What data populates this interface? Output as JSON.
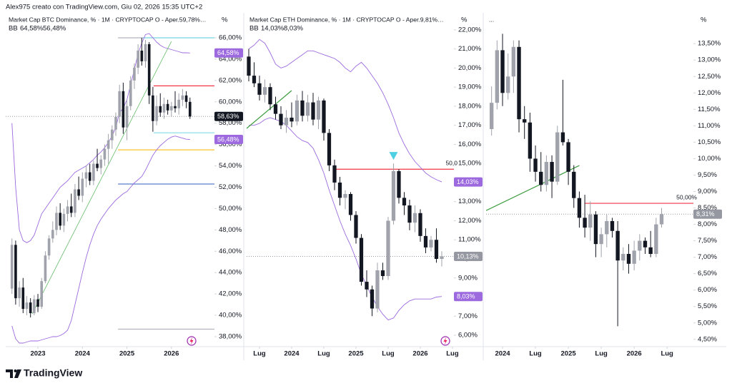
{
  "header": "Alex975 creato con TradingView.com, Giu 02, 2026 15:35 UTC+2",
  "footer": "TradingView",
  "chart_data": [
    {
      "type": "candlestick",
      "title": "Market Cap BTC Dominance, % · 1M · CRYPTOCAP  O - Aper.59,78%…",
      "unit": "%",
      "up_color": "#a0a3ab",
      "down_color": "#131722",
      "indicator": {
        "name": "BB",
        "upper_label": "64,58%",
        "lower_label": "56,48%",
        "color": "#9c6ade",
        "upper": [
          58,
          52,
          48,
          47,
          46.8,
          47,
          47.5,
          48.5,
          49.5,
          50,
          50.5,
          51,
          51.5,
          52,
          52.3,
          52.6,
          53,
          53.4,
          53.6,
          53.8,
          54,
          54.3,
          54.6,
          55,
          55.3,
          55.7,
          56.2,
          56.8,
          57.6,
          59,
          59.4,
          60.2,
          61.6,
          63,
          64.5,
          65.5,
          66.3,
          66.4,
          66,
          65.6,
          65.3,
          65.1,
          65,
          64.9,
          64.8,
          64.7,
          64.6,
          64.6,
          64.58
        ],
        "lower": [
          39,
          37.8,
          37.4,
          37.4,
          37.5,
          37.6,
          37.6,
          37.6,
          37.7,
          37.8,
          37.9,
          38,
          38,
          38.1,
          38.3,
          38.6,
          39.5,
          41,
          42.5,
          44,
          45.4,
          46.6,
          47.6,
          48.4,
          49,
          49.5,
          50,
          50.4,
          50.8,
          51.1,
          51.4,
          51.6,
          52,
          52.4,
          52.7,
          53,
          53.6,
          54.3,
          55,
          55.5,
          55.9,
          56.2,
          56.5,
          56.7,
          56.8,
          56.7,
          56.6,
          56.5,
          56.48
        ]
      },
      "open": [
        42.5,
        46.6,
        41.6,
        42.6,
        40.6,
        41.2,
        40.2,
        41.5,
        40.8,
        43.2,
        45.6,
        47.2,
        48.0,
        49.6,
        48.4,
        49.5,
        50.2,
        49.6,
        51.8,
        51.2,
        52.8,
        53.4,
        52.6,
        54.2,
        53.8,
        54.6,
        55.6,
        56.4,
        57.4,
        58.6,
        61.0,
        57.6,
        59.6,
        62.0,
        63.2,
        64.8,
        63.8,
        65.4,
        60.6,
        58.2,
        59.6,
        59.0,
        59.8,
        59.2,
        59.6,
        59.4,
        60.2,
        60.6,
        60.0
      ],
      "high": [
        47.2,
        47.0,
        43.2,
        43.5,
        41.8,
        41.6,
        41.9,
        42.0,
        43.5,
        46.0,
        47.5,
        48.8,
        50.2,
        50.5,
        50.0,
        50.8,
        51.4,
        52.3,
        53.0,
        53.4,
        54.0,
        54.2,
        54.5,
        55.6,
        55.0,
        56.0,
        57.0,
        57.8,
        59.0,
        61.6,
        61.8,
        60.2,
        62.4,
        63.6,
        65.4,
        66.0,
        65.8,
        65.6,
        61.4,
        60.6,
        60.8,
        60.4,
        60.2,
        60.0,
        61.0,
        60.8,
        61.2,
        61.0,
        60.4
      ],
      "low": [
        42.0,
        41.0,
        40.8,
        40.2,
        40.0,
        39.8,
        40.0,
        40.3,
        40.6,
        43.0,
        45.2,
        46.8,
        47.5,
        48.0,
        47.8,
        48.8,
        49.2,
        49.2,
        50.8,
        50.6,
        52.0,
        52.2,
        52.2,
        53.5,
        53.2,
        54.0,
        54.2,
        55.6,
        56.8,
        58.0,
        57.0,
        56.4,
        59.2,
        61.2,
        62.6,
        63.4,
        63.2,
        59.8,
        57.2,
        57.8,
        58.6,
        58.4,
        58.8,
        58.6,
        59.0,
        58.8,
        59.6,
        59.4,
        58.4
      ],
      "close": [
        46.6,
        41.6,
        42.6,
        40.6,
        41.2,
        40.2,
        41.5,
        40.8,
        43.2,
        45.6,
        47.2,
        48.0,
        49.6,
        48.4,
        49.5,
        50.2,
        49.6,
        51.8,
        51.2,
        52.8,
        53.4,
        52.6,
        54.2,
        53.8,
        54.6,
        55.6,
        56.4,
        57.4,
        58.6,
        61.0,
        57.6,
        59.6,
        62.0,
        63.2,
        64.8,
        63.8,
        65.4,
        60.6,
        58.2,
        59.6,
        59.0,
        59.8,
        59.2,
        59.6,
        59.4,
        60.2,
        60.6,
        60.0,
        58.63
      ],
      "xlim": [
        -1.68,
        54.6
      ],
      "xticks": [
        {
          "value": 7,
          "label": "2023"
        },
        {
          "value": 19,
          "label": "2024"
        },
        {
          "value": 31,
          "label": "2025"
        },
        {
          "value": 43,
          "label": "2026"
        }
      ],
      "ylim": [
        37.13,
        66.87
      ],
      "yticks": [
        {
          "value": 38,
          "label": "38,00%"
        },
        {
          "value": 40,
          "label": "40,00%"
        },
        {
          "value": 42,
          "label": "42,00%"
        },
        {
          "value": 44,
          "label": "44,00%"
        },
        {
          "value": 46,
          "label": "46,00%"
        },
        {
          "value": 48,
          "label": "48,00%"
        },
        {
          "value": 50,
          "label": "50,00%"
        },
        {
          "value": 52,
          "label": "52,00%"
        },
        {
          "value": 54,
          "label": "54,00%"
        },
        {
          "value": 56,
          "label": "56,00%"
        },
        {
          "value": 58,
          "label": "58,00%"
        },
        {
          "value": 60,
          "label": "60,00%"
        },
        {
          "value": 62,
          "label": "62,00%"
        },
        {
          "value": 64,
          "label": "64,00%"
        },
        {
          "value": 66,
          "label": "66,00%"
        }
      ],
      "hlines": [
        {
          "value": 66,
          "from": 28.6,
          "color": "#b2b5be"
        },
        {
          "value": 66,
          "from": 35.3,
          "color": "#80deea"
        },
        {
          "value": 61.5,
          "from": 38.2,
          "color": "#f23645"
        },
        {
          "value": 57.1,
          "from": 38.2,
          "color": "#80deea"
        },
        {
          "value": 55.5,
          "from": 28.6,
          "color": "#f9c22e"
        },
        {
          "value": 52.3,
          "from": 28.6,
          "color": "#5b7ecf"
        },
        {
          "value": 38.7,
          "from": 28.6,
          "color": "#b2b5be"
        }
      ],
      "trendlines": [
        {
          "x": [
            5.45,
            43.0
          ],
          "y": [
            40.13,
            65.67
          ],
          "color": "#66bb6a"
        }
      ],
      "price_labels": [
        {
          "value": 64.58,
          "label": "64,58%",
          "color": "#9c6ade"
        },
        {
          "value": 58.63,
          "label": "58,63%",
          "color": "#131722"
        },
        {
          "value": 56.48,
          "label": "56,48%",
          "color": "#9c6ade"
        }
      ]
    },
    {
      "type": "candlestick",
      "title": "Market Cap ETH Dominance, % · 1M · CRYPTOCAP  O - Aper.9,81%…",
      "unit": "%",
      "up_color": "#a0a3ab",
      "down_color": "#131722",
      "indicator": {
        "name": "BB",
        "upper_label": "14,03%",
        "lower_label": "8,03%",
        "color": "#9c6ade",
        "upper": [
          21.0,
          21.2,
          21.5,
          21.3,
          20.8,
          20.2,
          20.0,
          20.1,
          20.3,
          20.5,
          20.7,
          20.9,
          20.9,
          20.8,
          20.7,
          20.6,
          20.5,
          20.3,
          20.0,
          19.8,
          20.1,
          20.3,
          20.0,
          19.6,
          19.2,
          18.7,
          18.1,
          17.4,
          16.6,
          16.0,
          15.5,
          15.1,
          14.8,
          14.5,
          14.3,
          14.15,
          14.03
        ],
        "lower": [
          17.0,
          17.0,
          17.1,
          17.3,
          17.4,
          17.3,
          17.2,
          17.0,
          16.7,
          16.4,
          16.2,
          16.1,
          15.8,
          15.2,
          14.5,
          13.6,
          12.8,
          12.0,
          11.3,
          10.7,
          10.0,
          9.2,
          8.6,
          8.0,
          7.5,
          7.1,
          6.8,
          6.9,
          7.3,
          7.6,
          7.8,
          7.9,
          7.9,
          7.9,
          7.9,
          8.0,
          8.03
        ]
      },
      "open": [
        20.6,
        19.6,
        19.2,
        18.6,
        19.0,
        18.1,
        17.6,
        17.0,
        17.4,
        17.2,
        18.3,
        17.5,
        18.2,
        17.3,
        18.3,
        16.6,
        14.9,
        14.0,
        13.2,
        13.4,
        12.3,
        11.1,
        8.8,
        8.4,
        7.4,
        9.4,
        9.1,
        12.0,
        14.6,
        13.2,
        12.8,
        11.9,
        12.4,
        11.2,
        10.6,
        11.0,
        10.0
      ],
      "high": [
        21.0,
        20.3,
        19.6,
        19.4,
        19.2,
        18.5,
        18.0,
        17.8,
        18.2,
        18.6,
        18.8,
        18.6,
        18.7,
        18.5,
        18.4,
        16.8,
        15.2,
        14.3,
        13.6,
        13.5,
        12.5,
        11.3,
        9.4,
        8.6,
        9.8,
        9.8,
        12.2,
        15.0,
        14.7,
        13.5,
        13.1,
        12.8,
        12.6,
        11.6,
        11.2,
        11.6,
        10.4
      ],
      "low": [
        19.3,
        19.0,
        18.3,
        18.2,
        17.8,
        17.3,
        16.8,
        16.6,
        16.9,
        17.0,
        17.2,
        17.2,
        17.0,
        16.8,
        16.2,
        14.6,
        13.6,
        12.8,
        12.6,
        12.0,
        10.8,
        8.6,
        8.0,
        7.0,
        7.2,
        8.9,
        8.9,
        11.8,
        12.9,
        12.3,
        11.5,
        11.4,
        10.9,
        10.3,
        10.4,
        9.8,
        9.6
      ],
      "close": [
        19.6,
        19.2,
        18.6,
        19.0,
        18.1,
        17.6,
        17.0,
        17.4,
        17.2,
        18.3,
        17.5,
        18.2,
        17.3,
        18.3,
        16.6,
        14.9,
        14.0,
        13.2,
        13.4,
        12.3,
        11.1,
        8.8,
        8.4,
        7.4,
        9.4,
        9.1,
        12.0,
        14.6,
        13.2,
        12.8,
        11.9,
        12.4,
        11.2,
        10.6,
        11.0,
        10.0,
        10.13
      ],
      "xlim": [
        -0.4,
        38.27
      ],
      "xticks": [
        {
          "value": 2,
          "label": "Lug"
        },
        {
          "value": 8,
          "label": "2024"
        },
        {
          "value": 14,
          "label": "Lug"
        },
        {
          "value": 20,
          "label": "2025"
        },
        {
          "value": 26,
          "label": "Lug"
        },
        {
          "value": 32,
          "label": "2026"
        },
        {
          "value": 38,
          "label": "Lug"
        }
      ],
      "ylim": [
        5.44,
        22.07
      ],
      "yticks": [
        {
          "value": 6,
          "label": "6,00%"
        },
        {
          "value": 7,
          "label": "7,00%"
        },
        {
          "value": 8,
          "label": "8,00%"
        },
        {
          "value": 9,
          "label": "9,00%"
        },
        {
          "value": 10,
          "label": "10,00%"
        },
        {
          "value": 11,
          "label": "11,00%"
        },
        {
          "value": 12,
          "label": "12,00%"
        },
        {
          "value": 13,
          "label": "13,00%"
        },
        {
          "value": 14,
          "label": "14,00%"
        },
        {
          "value": 15,
          "label": "15,00%"
        },
        {
          "value": 16,
          "label": "16,00%"
        },
        {
          "value": 17,
          "label": "17,00%"
        },
        {
          "value": 18,
          "label": "18,00%"
        },
        {
          "value": 19,
          "label": "19,00%"
        },
        {
          "value": 20,
          "label": "20,00%"
        },
        {
          "value": 21,
          "label": "21,00%"
        },
        {
          "value": 22,
          "label": "22,00%"
        }
      ],
      "hlines": [
        {
          "value": 14.7,
          "from": 16.3,
          "color": "#f23645",
          "label": "50,0"
        }
      ],
      "trendlines": [
        {
          "x": [
            -0.4,
            8.0
          ],
          "y": [
            16.84,
            18.82
          ],
          "color": "#43a047"
        }
      ],
      "markers": [
        {
          "x": 27,
          "y": 15.3,
          "color": "#4dd0e1"
        }
      ],
      "price_labels": [
        {
          "value": 14.03,
          "label": "14,03%",
          "color": "#9c6ade"
        },
        {
          "value": 10.13,
          "label": "10,13%",
          "color": "#9598a1"
        },
        {
          "value": 8.03,
          "label": "8,03%",
          "color": "#9c6ade"
        }
      ]
    },
    {
      "type": "candlestick",
      "title": "...",
      "unit": "%",
      "up_color": "#a0a3ab",
      "down_color": "#131722",
      "open": [
        10.9,
        11.7,
        13.3,
        12.0,
        12.5,
        13.4,
        11.2,
        11.1,
        10.0,
        9.6,
        9.2,
        9.9,
        9.3,
        10.8,
        10.5,
        9.6,
        8.8,
        8.2,
        7.9,
        8.3,
        7.4,
        7.7,
        8.1,
        7.8,
        6.9,
        7.1,
        6.8,
        7.2,
        7.5,
        7.3,
        7.1,
        8.0
      ],
      "high": [
        12.2,
        13.6,
        13.8,
        13.2,
        13.6,
        13.6,
        11.6,
        11.4,
        10.4,
        10.2,
        10.1,
        10.1,
        11.0,
        12.4,
        10.6,
        9.8,
        9.0,
        8.9,
        8.7,
        8.4,
        7.9,
        8.3,
        8.2,
        8.1,
        7.3,
        7.4,
        7.5,
        7.7,
        7.6,
        7.8,
        8.2,
        8.5
      ],
      "low": [
        10.7,
        11.5,
        11.6,
        11.8,
        12.0,
        10.8,
        10.6,
        9.6,
        9.3,
        9.0,
        9.0,
        8.8,
        9.2,
        10.4,
        9.2,
        8.5,
        7.9,
        7.6,
        7.5,
        7.0,
        7.0,
        7.3,
        7.6,
        4.9,
        6.6,
        6.5,
        6.6,
        6.9,
        7.1,
        7.0,
        7.0,
        7.9
      ],
      "close": [
        11.7,
        13.3,
        12.0,
        12.5,
        13.4,
        11.2,
        11.1,
        10.0,
        9.6,
        9.2,
        9.9,
        9.3,
        10.8,
        10.5,
        9.6,
        8.8,
        8.2,
        7.9,
        8.3,
        7.4,
        7.7,
        8.1,
        7.8,
        6.9,
        7.1,
        6.8,
        7.2,
        7.5,
        7.3,
        7.1,
        8.0,
        8.31
      ],
      "xlim": [
        -1.0,
        36.8
      ],
      "xticks": [
        {
          "value": 2,
          "label": "2024"
        },
        {
          "value": 8,
          "label": "Lug"
        },
        {
          "value": 14,
          "label": "2025"
        },
        {
          "value": 20,
          "label": "Lug"
        },
        {
          "value": 26,
          "label": "2026"
        },
        {
          "value": 32,
          "label": "Lug"
        }
      ],
      "ylim": [
        4.3,
        13.96
      ],
      "yticks": [
        {
          "value": 4.5,
          "label": "4,50%"
        },
        {
          "value": 5,
          "label": "5,00%"
        },
        {
          "value": 5.5,
          "label": "5,50%"
        },
        {
          "value": 6,
          "label": "6,00%"
        },
        {
          "value": 6.5,
          "label": "6,50%"
        },
        {
          "value": 7,
          "label": "7,00%"
        },
        {
          "value": 7.5,
          "label": "7,50%"
        },
        {
          "value": 8,
          "label": "8,00%"
        },
        {
          "value": 8.5,
          "label": "8,50%"
        },
        {
          "value": 9,
          "label": "9,00%"
        },
        {
          "value": 9.5,
          "label": "9,50%"
        },
        {
          "value": 10,
          "label": "10,00%"
        },
        {
          "value": 10.5,
          "label": "10,50%"
        },
        {
          "value": 11,
          "label": "11,00%"
        },
        {
          "value": 11.5,
          "label": "11,50%"
        },
        {
          "value": 12,
          "label": "12,00%"
        },
        {
          "value": 12.5,
          "label": "12,50%"
        },
        {
          "value": 13,
          "label": "13,00%"
        },
        {
          "value": 13.5,
          "label": "13,50%"
        }
      ],
      "hlines": [
        {
          "value": 8.64,
          "from": 17,
          "color": "#f23645",
          "label": "50,00%"
        }
      ],
      "trendlines": [
        {
          "x": [
            -1.0,
            16.0
          ],
          "y": [
            8.42,
            9.79
          ],
          "color": "#43a047"
        }
      ],
      "price_labels": [
        {
          "value": 8.31,
          "label": "8,31%",
          "color": "#9598a1"
        }
      ]
    }
  ]
}
